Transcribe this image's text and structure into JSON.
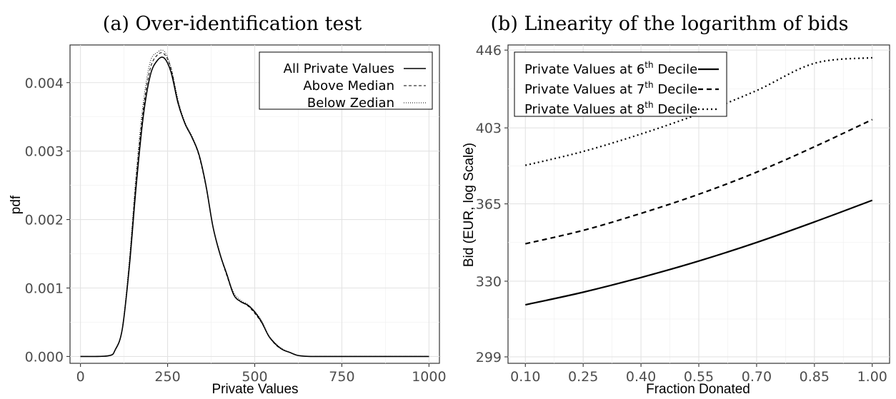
{
  "chart_data": [
    {
      "type": "line",
      "title": "(a) Over-identification test",
      "xlabel": "Private Values",
      "ylabel": "pdf",
      "xlim": [
        -30,
        1030
      ],
      "ylim": [
        -0.0001,
        0.00455
      ],
      "xticks": [
        0,
        250,
        500,
        750,
        1000
      ],
      "xtick_labels": [
        "0",
        "250",
        "500",
        "750",
        "1000"
      ],
      "yticks": [
        0.0,
        0.001,
        0.002,
        0.003,
        0.004
      ],
      "ytick_labels": [
        "0.000",
        "0.001",
        "0.002",
        "0.003",
        "0.004"
      ],
      "grid": true,
      "legend_position": "top-right",
      "series": [
        {
          "name": "All Private Values",
          "style": "solid",
          "x": [
            0,
            80,
            100,
            120,
            140,
            160,
            180,
            200,
            220,
            240,
            260,
            280,
            300,
            320,
            340,
            360,
            380,
            400,
            420,
            440,
            460,
            480,
            500,
            520,
            540,
            560,
            580,
            600,
            620,
            640,
            660,
            680,
            700,
            750,
            800,
            900,
            1000
          ],
          "values": [
            0,
            1e-05,
            0.0001,
            0.0004,
            0.0013,
            0.0025,
            0.0035,
            0.0041,
            0.00432,
            0.00436,
            0.00415,
            0.0037,
            0.0034,
            0.0032,
            0.00295,
            0.0025,
            0.0019,
            0.0015,
            0.0012,
            0.0009,
            0.0008,
            0.00075,
            0.00065,
            0.0005,
            0.0003,
            0.00018,
            0.0001,
            6e-05,
            2e-05,
            5e-06,
            0,
            0,
            0,
            0,
            0,
            0,
            0
          ]
        },
        {
          "name": "Above Median",
          "style": "dashed",
          "x": [
            0,
            80,
            100,
            120,
            140,
            160,
            180,
            200,
            220,
            240,
            260,
            280,
            300,
            320,
            340,
            360,
            380,
            400,
            420,
            440,
            460,
            480,
            500,
            520,
            540,
            560,
            580,
            600,
            620,
            640,
            660,
            680,
            700,
            750,
            800,
            900,
            1000
          ],
          "values": [
            0,
            1e-05,
            0.0001,
            0.0004,
            0.00135,
            0.0026,
            0.0036,
            0.0042,
            0.0044,
            0.00442,
            0.0042,
            0.00372,
            0.0034,
            0.0032,
            0.00293,
            0.00248,
            0.0019,
            0.0015,
            0.00118,
            0.0009,
            0.0008,
            0.00074,
            0.00063,
            0.00049,
            0.0003,
            0.00017,
            0.0001,
            6e-05,
            2e-05,
            5e-06,
            0,
            0,
            0,
            0,
            0,
            0,
            0
          ]
        },
        {
          "name": "Below Zedian",
          "style": "dotted",
          "x": [
            0,
            80,
            100,
            120,
            140,
            160,
            180,
            200,
            220,
            240,
            260,
            280,
            300,
            320,
            340,
            360,
            380,
            400,
            420,
            440,
            460,
            480,
            500,
            520,
            540,
            560,
            580,
            600,
            620,
            640,
            660,
            680,
            700,
            750,
            800,
            900,
            1000
          ],
          "values": [
            0,
            1e-05,
            0.0001,
            0.00042,
            0.0014,
            0.0027,
            0.0037,
            0.0043,
            0.00444,
            0.00446,
            0.00422,
            0.00375,
            0.00342,
            0.00322,
            0.00295,
            0.0025,
            0.0019,
            0.00152,
            0.0012,
            0.00093,
            0.00082,
            0.00076,
            0.00066,
            0.00052,
            0.00031,
            0.00019,
            0.00011,
            6e-05,
            2e-05,
            5e-06,
            0,
            0,
            0,
            0,
            0,
            0,
            0
          ]
        }
      ]
    },
    {
      "type": "line",
      "title": "(b) Linearity of the logarithm of bids",
      "xlabel": "Fraction Donated",
      "ylabel": "Bid (EUR, log Scale)",
      "log_y": true,
      "xlim": [
        0.055,
        1.045
      ],
      "ylim": [
        296.5,
        449
      ],
      "xticks": [
        0.1,
        0.25,
        0.4,
        0.55,
        0.7,
        0.85,
        1.0
      ],
      "xtick_labels": [
        "0.10",
        "0.25",
        "0.40",
        "0.55",
        "0.70",
        "0.85",
        "1.00"
      ],
      "yticks": [
        299,
        330,
        365,
        403,
        446
      ],
      "ytick_labels": [
        "299",
        "330",
        "365",
        "403",
        "446"
      ],
      "grid": true,
      "legend_position": "top-left",
      "series": [
        {
          "name_prefix": "Private Values at 6",
          "name_sup": "th",
          "name_suffix": " Decile",
          "style": "solid",
          "x": [
            0.1,
            0.25,
            0.4,
            0.55,
            0.7,
            0.85,
            1.0
          ],
          "values": [
            320.0,
            325.3,
            331.6,
            338.8,
            347.1,
            356.5,
            366.7
          ]
        },
        {
          "name_prefix": "Private Values at 7",
          "name_sup": "th",
          "name_suffix": " Decile",
          "style": "dashed",
          "x": [
            0.1,
            0.25,
            0.4,
            0.55,
            0.7,
            0.85,
            1.0
          ],
          "values": [
            346.5,
            352.6,
            360.5,
            369.6,
            380.4,
            393.2,
            407.4
          ]
        },
        {
          "name_prefix": "Private Values at 8",
          "name_sup": "th",
          "name_suffix": " Decile",
          "style": "dotted",
          "x": [
            0.1,
            0.25,
            0.4,
            0.55,
            0.7,
            0.85,
            1.0
          ],
          "values": [
            383.8,
            390.8,
            399.8,
            410.4,
            423.1,
            438.4,
            441.6
          ]
        }
      ]
    }
  ]
}
